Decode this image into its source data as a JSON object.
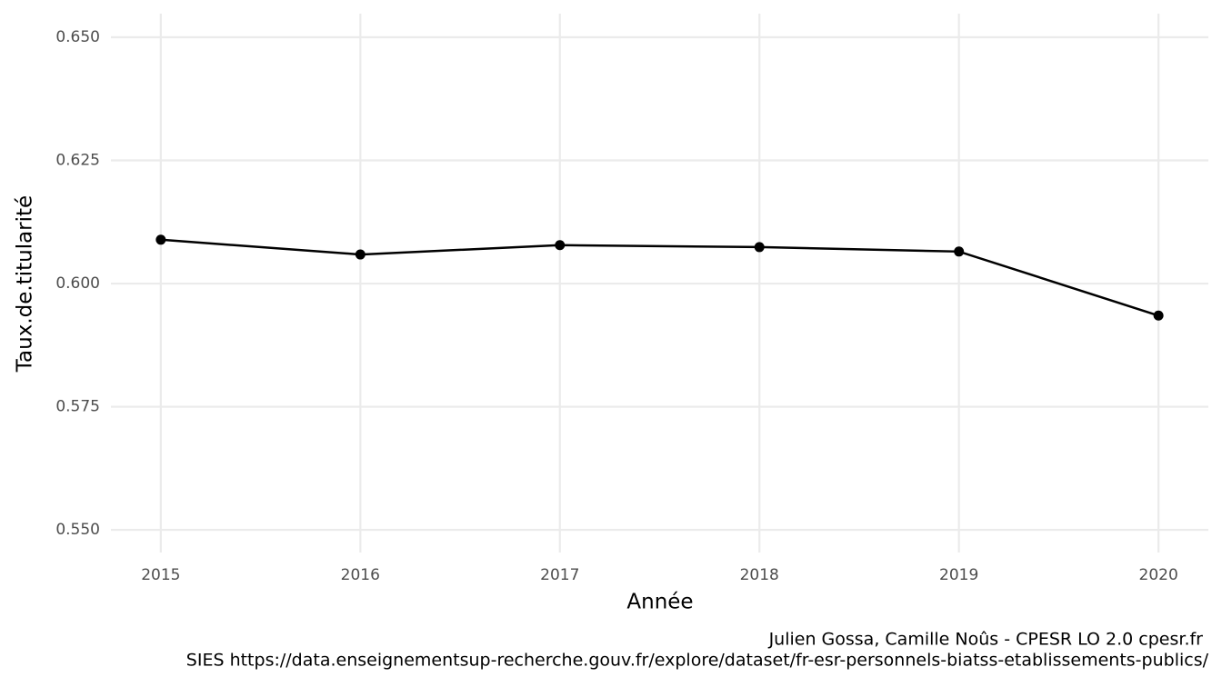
{
  "chart_data": {
    "type": "line",
    "x_label": "Année",
    "y_label": "Taux.de.titularité",
    "caption": [
      "Julien Gossa, Camille Noûs - CPESR LO 2.0 cpesr.fr",
      "SIES https://data.enseignementsup-recherche.gouv.fr/explore/dataset/fr-esr-personnels-biatss-etablissements-publics/"
    ],
    "x": [
      2015,
      2016,
      2017,
      2018,
      2019,
      2020
    ],
    "series": [
      {
        "color": "#000000",
        "values": [
          0.6089,
          0.6059,
          0.6078,
          0.6074,
          0.6065,
          0.5935
        ]
      }
    ],
    "xlim": [
      2014.75,
      2020.25
    ],
    "ylim": [
      0.5454,
      0.6548
    ],
    "xticks": [
      2015,
      2016,
      2017,
      2018,
      2019,
      2020
    ],
    "yticks": [
      {
        "value": 0.55,
        "label": "0.550"
      },
      0.575,
      {
        "value": 0.6,
        "label": "0.600"
      },
      0.625,
      {
        "value": 0.65,
        "label": "0.650"
      }
    ],
    "grid": true
  }
}
